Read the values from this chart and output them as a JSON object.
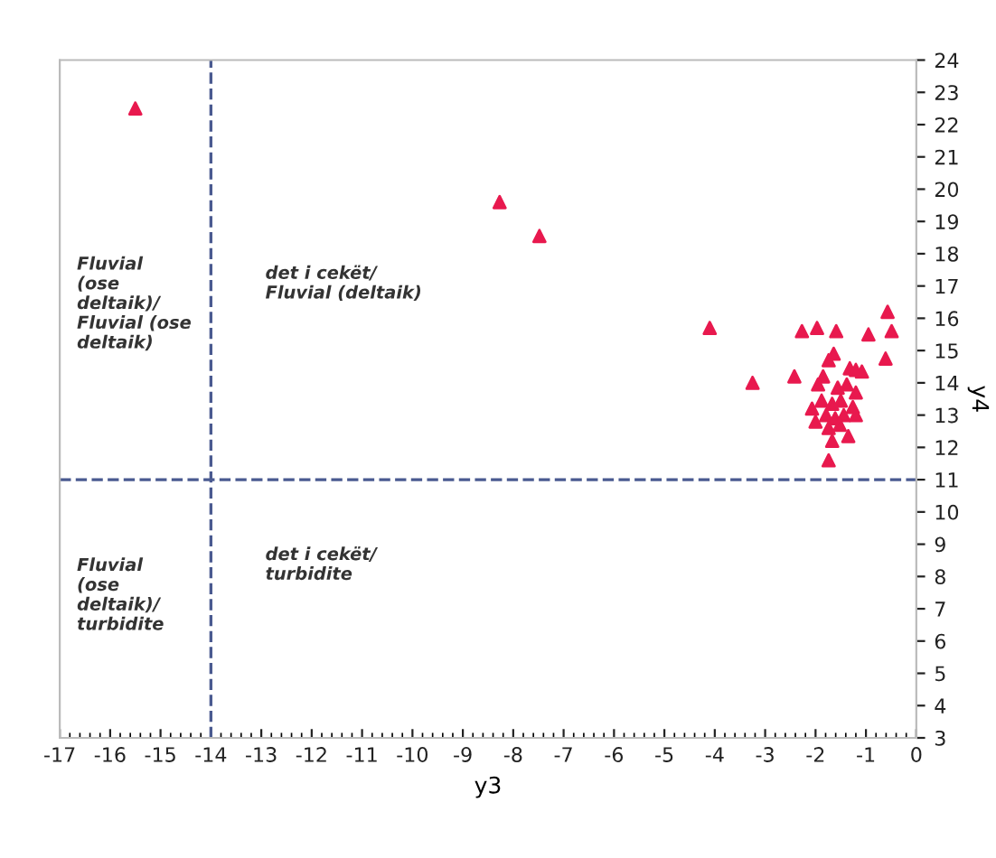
{
  "chart_data": {
    "type": "scatter",
    "xlabel": "y3",
    "ylabel": "y4",
    "x": [
      -15.5,
      -8.27,
      -7.48,
      -4.1,
      -3.25,
      -2.42,
      -2.27,
      -1.97,
      -1.59,
      -0.95,
      -0.57,
      -0.49,
      -0.61,
      -1.74,
      -1.64,
      -1.32,
      -1.2,
      -1.08,
      -1.85,
      -1.95,
      -1.56,
      -1.38,
      -1.2,
      -2.07,
      -1.88,
      -1.67,
      -1.5,
      -1.26,
      -2.0,
      -1.79,
      -1.61,
      -1.44,
      -1.2,
      -1.74,
      -1.52,
      -1.67,
      -1.35,
      -1.74
    ],
    "series": [
      {
        "color": "#e8194e",
        "values": [
          22.5,
          19.6,
          18.55,
          15.7,
          14.0,
          14.2,
          15.6,
          15.7,
          15.6,
          15.5,
          16.2,
          15.6,
          14.75,
          14.7,
          14.9,
          14.45,
          14.4,
          14.35,
          14.2,
          13.95,
          13.85,
          13.95,
          13.7,
          13.2,
          13.45,
          13.35,
          13.45,
          13.25,
          12.8,
          13.0,
          12.9,
          13.0,
          13.0,
          12.6,
          12.7,
          12.2,
          12.35,
          11.6
        ]
      }
    ],
    "marker": "triangle",
    "xlim": [
      -17,
      0
    ],
    "xticks": [
      -17,
      -16,
      -15,
      -14,
      -13,
      -12,
      -11,
      -10,
      -9,
      -8,
      -7,
      -6,
      -5,
      -4,
      -3,
      -2,
      -1,
      0
    ],
    "ylim": [
      3,
      24
    ],
    "yticks": [
      3,
      4,
      5,
      6,
      7,
      8,
      9,
      10,
      11,
      12,
      13,
      14,
      15,
      16,
      17,
      18,
      19,
      20,
      21,
      22,
      23,
      24
    ],
    "grid": false,
    "legend": false,
    "ref_lines": [
      {
        "axis": "x",
        "value": -14,
        "color": "#4a5a90",
        "line_style": "dashed"
      },
      {
        "axis": "y",
        "value": 11,
        "color": "#4a5a90",
        "line_style": "dashed"
      }
    ],
    "annotations": [
      "Fluvial\n(ose\ndeltaik)/\nFluvial (ose\ndeltaik)",
      "det i cekët/\nFluvial (deltaik)",
      "Fluvial\n(ose\ndeltaik)/\nturbidite",
      "det i cekët/\nturbidite"
    ]
  }
}
